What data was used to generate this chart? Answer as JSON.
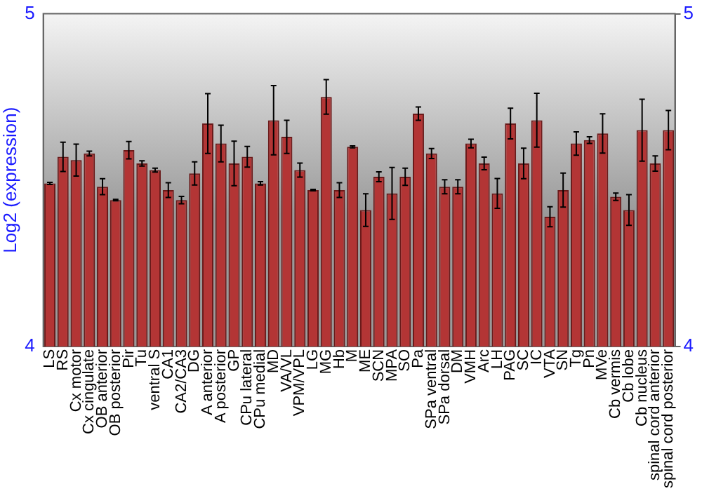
{
  "chart_data": {
    "type": "bar",
    "ylabel": "Log2 (expression)",
    "categories": [
      "LS",
      "RS",
      "Cx motor",
      "Cx cingulate",
      "OB anterior",
      "OB posterior",
      "Pir",
      "Tu",
      "ventral S",
      "CA1",
      "CA2/CA3",
      "DG",
      "A anterior",
      "A posterior",
      "GP",
      "CPu lateral",
      "CPu medial",
      "MD",
      "VA/VL",
      "VPM/VPL",
      "LG",
      "MG",
      "Hb",
      "M",
      "ME",
      "SCN",
      "MPA",
      "SO",
      "Pa",
      "SPa ventral",
      "SPa dorsal",
      "DM",
      "VMH",
      "Arc",
      "LH",
      "PAG",
      "SC",
      "IC",
      "VTA",
      "SN",
      "Tg",
      "Pn",
      "MVe",
      "Cb vermis",
      "Cb lobe",
      "Cb nucleus",
      "spinal cord anterior",
      "spinal cord posterior"
    ],
    "series": [
      {
        "color": "#b33535",
        "values": [
          4.49,
          4.57,
          4.56,
          4.58,
          4.48,
          4.44,
          4.59,
          4.55,
          4.53,
          4.47,
          4.44,
          4.52,
          4.67,
          4.61,
          4.55,
          4.57,
          4.49,
          4.68,
          4.63,
          4.53,
          4.47,
          4.75,
          4.47,
          4.6,
          4.41,
          4.51,
          4.46,
          4.51,
          4.7,
          4.58,
          4.48,
          4.48,
          4.61,
          4.55,
          4.46,
          4.67,
          4.55,
          4.68,
          4.39,
          4.47,
          4.61,
          4.62,
          4.64,
          4.45,
          4.41,
          4.65,
          4.55,
          4.65
        ],
        "errors": [
          0.003,
          0.044,
          0.048,
          0.007,
          0.024,
          0.002,
          0.026,
          0.008,
          0.006,
          0.022,
          0.011,
          0.035,
          0.09,
          0.055,
          0.067,
          0.031,
          0.005,
          0.104,
          0.05,
          0.021,
          0.002,
          0.052,
          0.022,
          0.003,
          0.049,
          0.015,
          0.078,
          0.026,
          0.02,
          0.015,
          0.021,
          0.021,
          0.013,
          0.019,
          0.045,
          0.046,
          0.046,
          0.081,
          0.03,
          0.051,
          0.035,
          0.01,
          0.059,
          0.011,
          0.046,
          0.093,
          0.023,
          0.059
        ]
      }
    ],
    "ylim": [
      4,
      5
    ],
    "yticks": [
      4,
      5
    ],
    "y2lim": [
      4,
      5
    ],
    "y2ticks": [
      4,
      5
    ],
    "legend": false
  }
}
